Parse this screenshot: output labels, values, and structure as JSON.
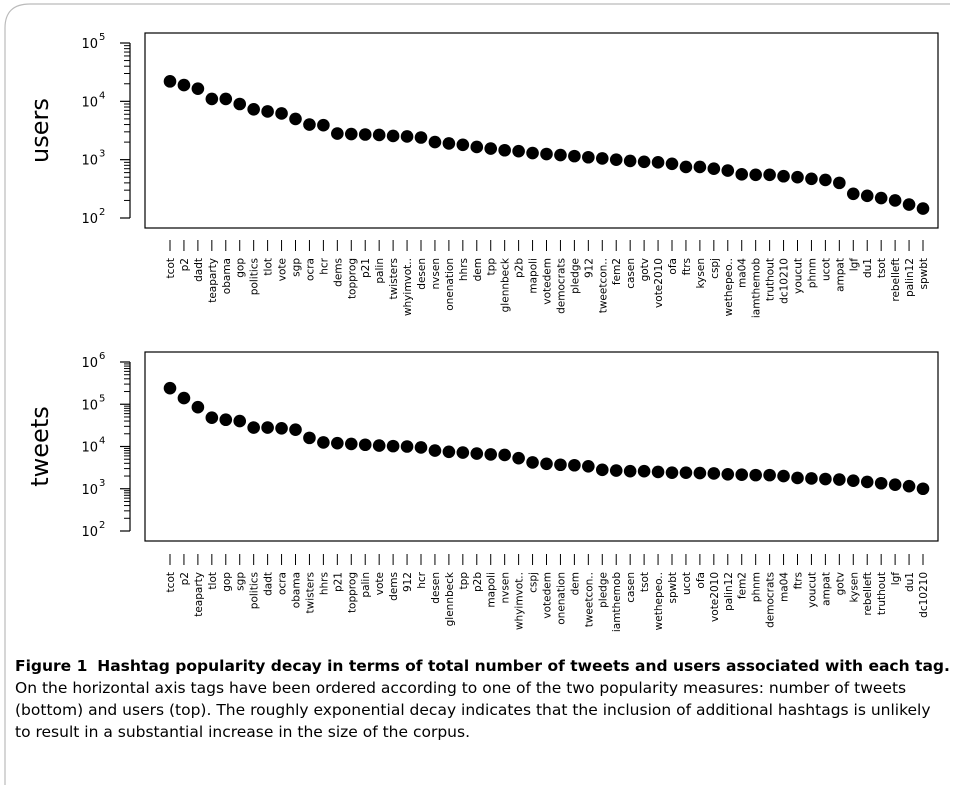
{
  "chart_data": [
    {
      "type": "scatter",
      "ylabel": "users",
      "xlabel": "",
      "title": "",
      "yscale": "log",
      "ylim": [
        100,
        100000
      ],
      "ytick_labels": [
        "10",
        "10",
        "10",
        "10"
      ],
      "ytick_exponents": [
        "2",
        "3",
        "4",
        "5"
      ],
      "ytick_values": [
        100,
        1000,
        10000,
        100000
      ],
      "grid": false,
      "categories": [
        "tcot",
        "p2",
        "dadt",
        "teaparty",
        "obama",
        "gop",
        "politics",
        "tlot",
        "vote",
        "sgp",
        "ocra",
        "hcr",
        "dems",
        "topprog",
        "p21",
        "palin",
        "twisters",
        "whyimvot..",
        "desen",
        "nvsen",
        "onenation",
        "hhrs",
        "dem",
        "tpp",
        "glennbeck",
        "p2b",
        "mapoli",
        "votedem",
        "democrats",
        "pledge",
        "912",
        "tweetcon..",
        "fem2",
        "casen",
        "gotv",
        "vote2010",
        "ofa",
        "ftrs",
        "kysen",
        "cspj",
        "wethepeo..",
        "ma04",
        "iamthemob",
        "truthout",
        "dc10210",
        "youcut",
        "phnm",
        "ucot",
        "ampat",
        "lgf",
        "du1",
        "tsot",
        "rebelleft",
        "palin12",
        "spwbt"
      ],
      "values": [
        22000,
        19000,
        16500,
        11000,
        11000,
        9000,
        7300,
        6700,
        6200,
        5000,
        4000,
        3900,
        2800,
        2750,
        2700,
        2650,
        2550,
        2500,
        2400,
        2000,
        1900,
        1800,
        1650,
        1550,
        1450,
        1400,
        1300,
        1250,
        1200,
        1150,
        1100,
        1050,
        1000,
        950,
        920,
        900,
        850,
        750,
        750,
        700,
        650,
        560,
        550,
        550,
        520,
        500,
        470,
        450,
        400,
        260,
        240,
        220,
        200,
        170,
        145
      ]
    },
    {
      "type": "scatter",
      "ylabel": "tweets",
      "xlabel": "",
      "title": "",
      "yscale": "log",
      "ylim": [
        100,
        1000000
      ],
      "ytick_labels": [
        "10",
        "10",
        "10",
        "10",
        "10"
      ],
      "ytick_exponents": [
        "2",
        "3",
        "4",
        "5",
        "6"
      ],
      "ytick_values": [
        100,
        1000,
        10000,
        100000,
        1000000
      ],
      "grid": false,
      "categories": [
        "tcot",
        "p2",
        "teaparty",
        "tlot",
        "gop",
        "sgp",
        "politics",
        "dadt",
        "ocra",
        "obama",
        "twisters",
        "hhrs",
        "p21",
        "topprog",
        "palin",
        "vote",
        "dems",
        "912",
        "hcr",
        "desen",
        "glennbeck",
        "tpp",
        "p2b",
        "mapoli",
        "nvsen",
        "whyimvot..",
        "cspj",
        "votedem",
        "onenation",
        "dem",
        "tweetcon..",
        "pledge",
        "iamthemob",
        "casen",
        "tsot",
        "wethepeo..",
        "spwbt",
        "ucot",
        "ofa",
        "vote2010",
        "palin12",
        "fem2",
        "phnm",
        "democrats",
        "ma04",
        "ftrs",
        "youcut",
        "ampat",
        "gotv",
        "kysen",
        "rebelleft",
        "truthout",
        "lgf",
        "du1",
        "dc10210"
      ],
      "values": [
        240000,
        140000,
        85000,
        48000,
        43000,
        40000,
        28000,
        28000,
        27000,
        25000,
        16000,
        12500,
        12000,
        11500,
        11000,
        10500,
        10200,
        10000,
        9500,
        8000,
        7500,
        7200,
        6800,
        6500,
        6300,
        5300,
        4200,
        3900,
        3700,
        3600,
        3400,
        2800,
        2700,
        2600,
        2600,
        2500,
        2400,
        2400,
        2350,
        2300,
        2200,
        2150,
        2100,
        2100,
        2000,
        1800,
        1750,
        1700,
        1650,
        1550,
        1450,
        1350,
        1250,
        1150,
        1000
      ]
    }
  ],
  "caption": {
    "label": "Figure 1",
    "title": "Hashtag popularity decay in terms of total number of tweets and users associated with each tag.",
    "text": "On the horizontal axis tags have been ordered according to one of the two popularity measures: number of tweets (bottom) and users (top). The roughly exponential decay indicates that the inclusion of additional hashtags is unlikely to result in a substantial increase in the size of the corpus."
  },
  "colors": {
    "marker": "#000000",
    "axis": "#000000",
    "frame": "#bbbbbb",
    "background": "#ffffff"
  }
}
